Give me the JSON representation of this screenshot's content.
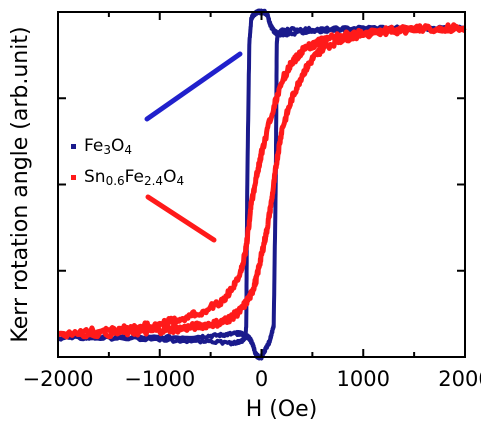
{
  "chart_data": {
    "type": "line",
    "xlabel": "H (Oe)",
    "ylabel": "Kerr rotation angle (arb.unit)",
    "xlim": [
      -2000,
      2000
    ],
    "ylim": [
      -1.1,
      1.1
    ],
    "x_ticks": [
      -2000,
      -1000,
      0,
      1000,
      2000
    ],
    "x_tick_labels": [
      "−2000",
      "−1000",
      "0",
      "1000",
      "2000"
    ],
    "grid": false,
    "legend_position": "middle-left",
    "series": [
      {
        "name": "Fe3O4",
        "name_parts": [
          "Fe",
          "3",
          "O",
          "4"
        ],
        "color": "#1a1a8c",
        "branches": [
          {
            "x": [
              2000,
              1500,
              1000,
              600,
              400,
              250,
              200,
              160,
              140,
              120,
              100,
              80,
              60,
              30,
              0,
              -40,
              -80,
              -100,
              -120,
              -140,
              -150,
              -160,
              -200,
              -300,
              -600,
              -1000,
              -1500,
              -2000
            ],
            "y": [
              1.0,
              0.99,
              0.985,
              0.98,
              0.97,
              0.96,
              0.96,
              0.96,
              0.97,
              0.98,
              1.0,
              1.03,
              1.08,
              1.1,
              1.1,
              1.1,
              1.08,
              1.06,
              0.9,
              0.0,
              -0.9,
              -0.98,
              -1.0,
              -1.01,
              -1.0,
              -0.99,
              -0.97,
              -0.98
            ]
          },
          {
            "x": [
              -2000,
              -1500,
              -1000,
              -600,
              -400,
              -250,
              -200,
              -160,
              -140,
              -120,
              -100,
              -80,
              -60,
              -30,
              0,
              40,
              80,
              100,
              120,
              140,
              150,
              160,
              200,
              300,
              600,
              1000,
              1500,
              2000
            ],
            "y": [
              -0.98,
              -0.98,
              -0.975,
              -0.97,
              -0.96,
              -0.95,
              -0.95,
              -0.96,
              -0.97,
              -0.98,
              -1.0,
              -1.03,
              -1.08,
              -1.1,
              -1.1,
              -1.05,
              -1.0,
              -0.95,
              -0.9,
              0.0,
              0.9,
              0.96,
              0.98,
              0.99,
              0.99,
              1.0,
              1.0,
              1.0
            ]
          }
        ]
      },
      {
        "name": "Sn0.6Fe2.4O4",
        "name_parts": [
          "Sn",
          "0.6",
          "Fe",
          "2.4",
          "O",
          "4"
        ],
        "color": "#ff1a1a",
        "branches": [
          {
            "x": [
              2000,
              1500,
              1000,
              800,
              600,
              500,
              400,
              300,
              200,
              100,
              0,
              -50,
              -100,
              -150,
              -200,
              -300,
              -400,
              -600,
              -800,
              -1000,
              -1200,
              -1500,
              -2000
            ],
            "y": [
              1.0,
              0.99,
              0.97,
              0.95,
              0.92,
              0.89,
              0.85,
              0.78,
              0.66,
              0.45,
              0.2,
              0.05,
              -0.12,
              -0.4,
              -0.55,
              -0.68,
              -0.75,
              -0.82,
              -0.86,
              -0.89,
              -0.91,
              -0.93,
              -0.95
            ]
          },
          {
            "x": [
              -2000,
              -1500,
              -1200,
              -1000,
              -800,
              -600,
              -400,
              -300,
              -200,
              -100,
              -50,
              0,
              50,
              100,
              150,
              200,
              300,
              400,
              500,
              600,
              800,
              1000,
              1500,
              2000
            ],
            "y": [
              -0.95,
              -0.95,
              -0.94,
              -0.93,
              -0.92,
              -0.9,
              -0.88,
              -0.85,
              -0.8,
              -0.7,
              -0.6,
              -0.45,
              -0.3,
              -0.1,
              0.15,
              0.35,
              0.55,
              0.7,
              0.8,
              0.87,
              0.93,
              0.96,
              0.99,
              1.0
            ]
          }
        ]
      }
    ]
  }
}
